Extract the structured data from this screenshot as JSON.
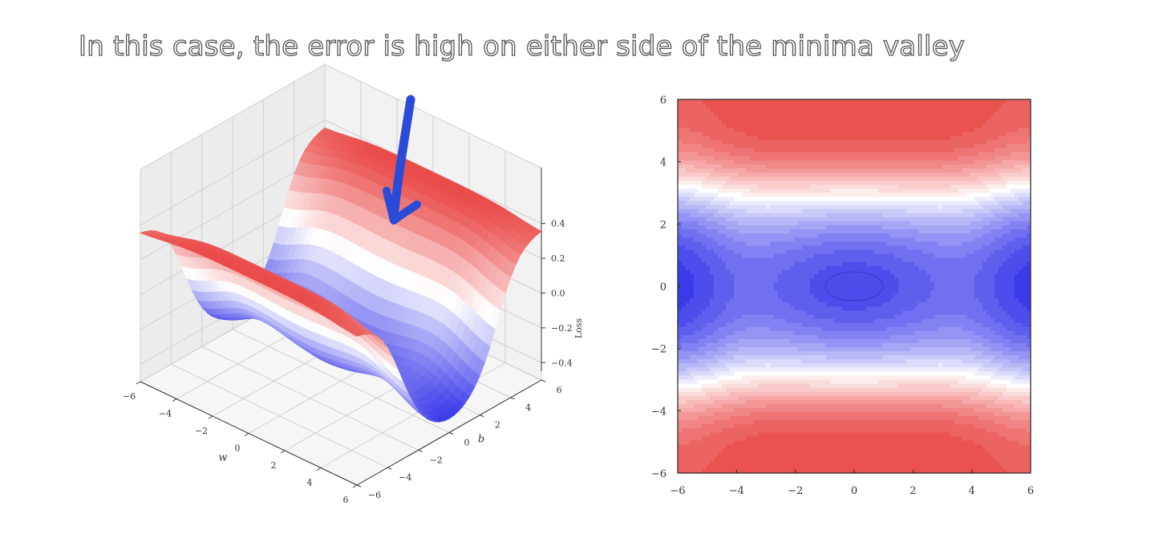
{
  "slide": {
    "title": "In this case, the error is high on either side of the minima valley"
  },
  "colors": {
    "high_loss": "#e8413f",
    "low_loss": "#3b3bea",
    "neutral": "#ffffff",
    "annotation_arrow": "#2a4bd7"
  },
  "chart_data": [
    {
      "type": "surface",
      "title": "",
      "xlabel": "w",
      "ylabel": "b",
      "zlabel": "Loss",
      "xlim": [
        -6,
        6
      ],
      "ylim": [
        -6,
        6
      ],
      "zlim": [
        -0.5,
        0.5
      ],
      "x_ticks": [
        -6,
        -4,
        -2,
        0,
        2,
        4,
        6
      ],
      "y_ticks": [
        -6,
        -4,
        -2,
        0,
        2,
        4,
        6
      ],
      "z_ticks": [
        0.4,
        0.2,
        0.0,
        -0.2,
        -0.4
      ],
      "x_tick_labels": [
        "−6",
        "−4",
        "−2",
        "0",
        "2",
        "4",
        "6"
      ],
      "y_tick_labels": [
        "−6",
        "−4",
        "−2",
        "0",
        "2",
        "4",
        "6"
      ],
      "z_tick_labels": [
        "0.4",
        "0.2",
        "0.0",
        "−0.2",
        "−0.4"
      ],
      "colormap": "coolwarm",
      "grid": true,
      "annotation": "hand-drawn blue arrow pointing at the raised red surface"
    },
    {
      "type": "contour",
      "title": "",
      "xlabel": "",
      "ylabel": "",
      "xlim": [
        -6,
        6
      ],
      "ylim": [
        -6,
        6
      ],
      "x_ticks": [
        -6,
        -4,
        -2,
        0,
        2,
        4,
        6
      ],
      "y_ticks": [
        -6,
        -4,
        -2,
        0,
        2,
        4,
        6
      ],
      "x_tick_labels": [
        "−6",
        "−4",
        "−2",
        "0",
        "2",
        "4",
        "6"
      ],
      "y_tick_labels": [
        "−6",
        "−4",
        "−2",
        "0",
        "2",
        "4",
        "6"
      ],
      "colormap": "coolwarm",
      "filled": true,
      "minimum": [
        0,
        0
      ],
      "grid": false
    }
  ]
}
